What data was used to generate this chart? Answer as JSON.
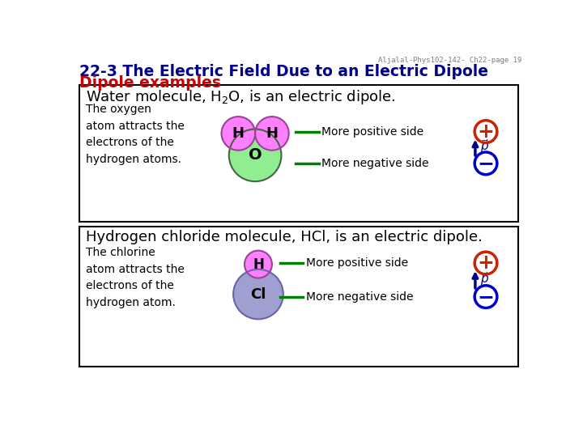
{
  "title_line1": "22-3 The Electric Field Due to an Electric Dipole",
  "title_line2": "Dipole examples",
  "title_color": "#00008B",
  "subtitle_color": "#CC0000",
  "watermark": "Aljalal-Phys102-142- Ch22-page 19",
  "box1_text": "The oxygen\natom attracts the\nelectrons of the\nhydrogen atoms.",
  "box1_H_color": "#FF80FF",
  "box1_O_color": "#90EE90",
  "box1_H_border": "#994499",
  "box1_O_border": "#446644",
  "box1_H_label": "H",
  "box1_O_label": "O",
  "box1_pos_label": "More positive side",
  "box1_neg_label": "More negative side",
  "box2_text": "The chlorine\natom attracts the\nelectrons of the\nhydrogen atom.",
  "box2_H_color": "#FF80FF",
  "box2_Cl_color": "#A0A0D0",
  "box2_H_border": "#994499",
  "box2_Cl_border": "#6666AA",
  "box2_H_label": "H",
  "box2_Cl_label": "Cl",
  "box2_pos_label": "More positive side",
  "box2_neg_label": "More negative side",
  "plus_color": "#CC2200",
  "minus_color": "#0000CC",
  "arrow_color": "#00008B",
  "green_line_color": "#008000",
  "background": "#FFFFFF"
}
